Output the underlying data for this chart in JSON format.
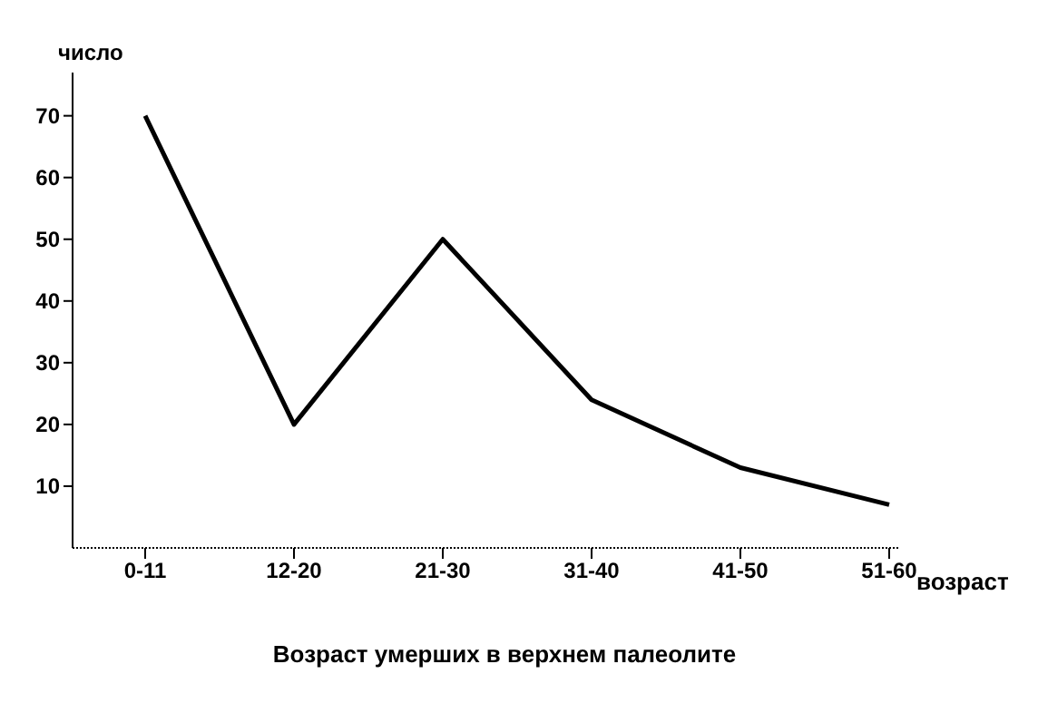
{
  "chart_data": {
    "type": "line",
    "title": "Возраст умерших в верхнем палеолите",
    "xlabel": "возраст",
    "ylabel": "число",
    "categories": [
      "0-11",
      "12-20",
      "21-30",
      "31-40",
      "41-50",
      "51-60"
    ],
    "series": [
      {
        "color": "#000000",
        "values": [
          70,
          20,
          50,
          24,
          13,
          7
        ]
      }
    ],
    "ylim": [
      0,
      77
    ],
    "yticks": [
      10,
      20,
      30,
      40,
      50,
      60,
      70
    ],
    "grid": false,
    "legend": false,
    "marker": "none",
    "line_style": "solid"
  }
}
